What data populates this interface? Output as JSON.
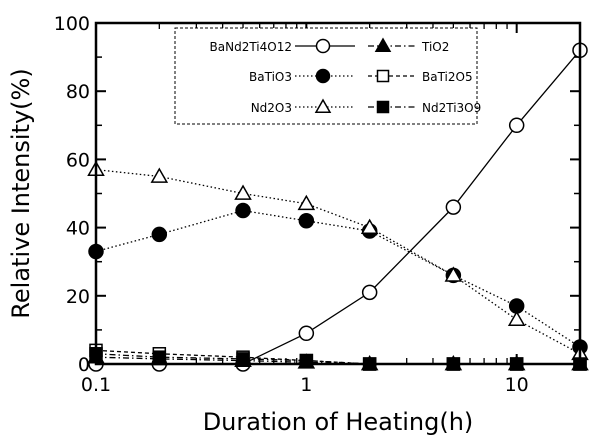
{
  "chart_data": {
    "type": "line",
    "title": "",
    "xlabel": "Duration of Heating(h)",
    "ylabel": "Relative Intensity(%)",
    "x_scale": "log",
    "xlim": [
      0.1,
      20
    ],
    "ylim": [
      0,
      100
    ],
    "x_ticks": [
      {
        "value": 0.1,
        "label": "0.1"
      },
      {
        "value": 1,
        "label": "1"
      },
      {
        "value": 10,
        "label": "10"
      }
    ],
    "y_ticks": [
      {
        "value": 0,
        "label": "0"
      },
      {
        "value": 20,
        "label": "20"
      },
      {
        "value": 40,
        "label": "40"
      },
      {
        "value": 60,
        "label": "60"
      },
      {
        "value": 80,
        "label": "80"
      },
      {
        "value": 100,
        "label": "100"
      }
    ],
    "grid": false,
    "legend_position": "top-center",
    "series": [
      {
        "name": "BaNd2Ti4O12",
        "marker": "circle-open",
        "line": "solid",
        "x": [
          0.1,
          0.2,
          0.5,
          1,
          2,
          5,
          10,
          20
        ],
        "y": [
          0,
          0,
          0,
          9,
          21,
          46,
          70,
          92
        ]
      },
      {
        "name": "TiO2",
        "marker": "triangle-filled",
        "line": "dashdot",
        "x": [
          0.1,
          0.2,
          0.5,
          1,
          2,
          5,
          10,
          20
        ],
        "y": [
          2,
          1.5,
          1,
          0.5,
          0,
          0,
          0,
          0
        ]
      },
      {
        "name": "BaTiO3",
        "marker": "circle-filled",
        "line": "dotted",
        "x": [
          0.1,
          0.2,
          0.5,
          1,
          2,
          5,
          10,
          20
        ],
        "y": [
          33,
          38,
          45,
          42,
          39,
          26,
          17,
          5
        ]
      },
      {
        "name": "BaTi2O5",
        "marker": "square-open",
        "line": "dashed",
        "x": [
          0.1,
          0.2,
          0.5,
          1,
          2,
          5,
          10,
          20
        ],
        "y": [
          4,
          3,
          2,
          1,
          0,
          0,
          0,
          0
        ]
      },
      {
        "name": "Nd2O3",
        "marker": "triangle-open",
        "line": "dotted",
        "x": [
          0.1,
          0.2,
          0.5,
          1,
          2,
          5,
          10,
          20
        ],
        "y": [
          57,
          55,
          50,
          47,
          40,
          26,
          13,
          3
        ]
      },
      {
        "name": "Nd2Ti3O9",
        "marker": "square-filled",
        "line": "dashdot",
        "x": [
          0.1,
          0.2,
          0.5,
          1,
          2,
          5,
          10,
          20
        ],
        "y": [
          3,
          2,
          1.5,
          1,
          0,
          0,
          0,
          0
        ]
      }
    ]
  }
}
